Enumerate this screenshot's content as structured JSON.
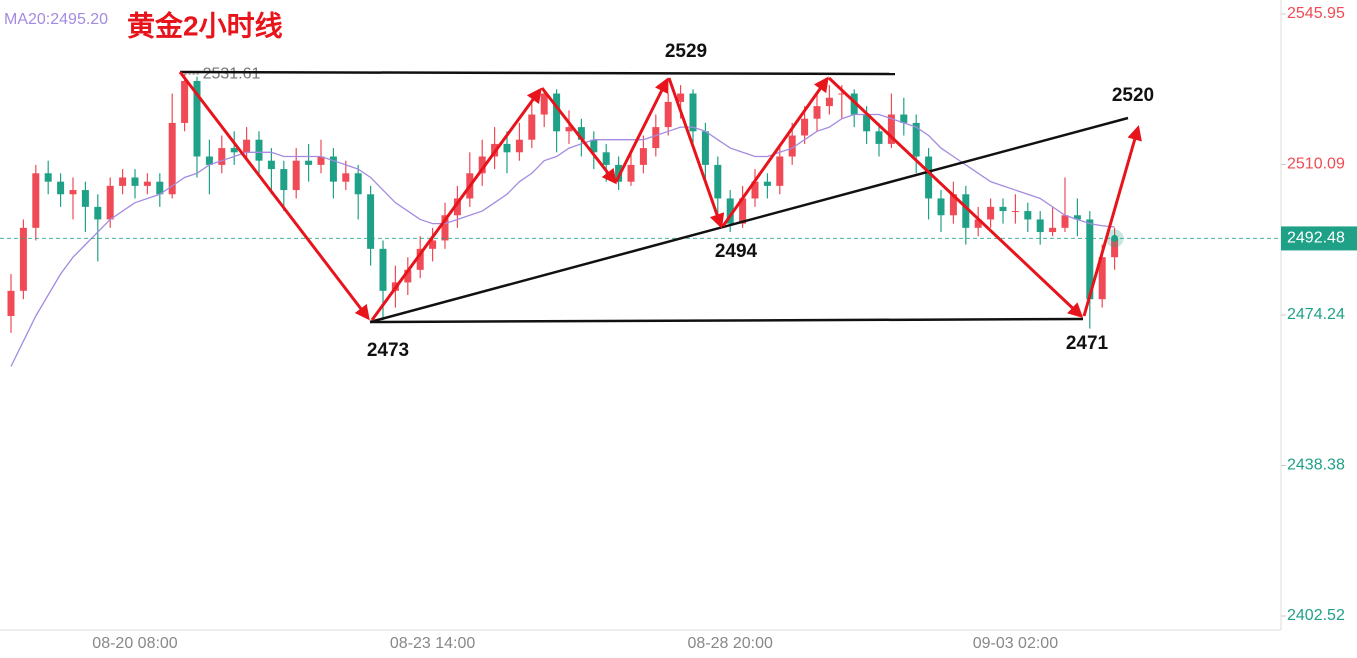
{
  "chart_data": {
    "type": "candlestick",
    "title": "黄金2小时线",
    "ma_label": "MA20:2495.20",
    "ylim": [
      2402.52,
      2545.95
    ],
    "yticks": [
      2545.95,
      2510.09,
      2474.24,
      2438.38,
      2402.52
    ],
    "last_price": 2492.48,
    "high_label": 2531.61,
    "up_color": "#ef4a55",
    "down_color": "#1fa187",
    "categories": [
      null,
      null,
      null,
      null,
      null,
      null,
      null,
      null,
      null,
      null,
      "08-20 08:00",
      null,
      null,
      null,
      null,
      null,
      null,
      null,
      null,
      null,
      null,
      null,
      null,
      null,
      null,
      null,
      null,
      null,
      null,
      null,
      null,
      null,
      null,
      null,
      "08-23 14:00",
      null,
      null,
      null,
      null,
      null,
      null,
      null,
      null,
      null,
      null,
      null,
      null,
      null,
      null,
      null,
      null,
      null,
      null,
      null,
      null,
      null,
      null,
      null,
      "08-28 20:00",
      null,
      null,
      null,
      null,
      null,
      null,
      null,
      null,
      null,
      null,
      null,
      null,
      null,
      null,
      null,
      null,
      null,
      null,
      null,
      null,
      null,
      null,
      "09-03 02:00",
      null,
      null,
      null,
      null,
      null,
      null,
      null,
      null
    ],
    "ohlc": [
      [
        2474,
        2484,
        2470,
        2480
      ],
      [
        2480,
        2497,
        2478,
        2495
      ],
      [
        2495,
        2510,
        2492,
        2508
      ],
      [
        2508,
        2511,
        2503,
        2506
      ],
      [
        2506,
        2508,
        2500,
        2503
      ],
      [
        2503,
        2507,
        2497,
        2504
      ],
      [
        2504,
        2506,
        2494,
        2500
      ],
      [
        2500,
        2503,
        2487,
        2497
      ],
      [
        2497,
        2507,
        2495,
        2505
      ],
      [
        2505,
        2509,
        2503,
        2507
      ],
      [
        2507,
        2509,
        2502,
        2505
      ],
      [
        2505,
        2508,
        2503,
        2506
      ],
      [
        2506,
        2508,
        2500,
        2503
      ],
      [
        2503,
        2527,
        2502,
        2520
      ],
      [
        2520,
        2531.61,
        2518,
        2530
      ],
      [
        2530,
        2531,
        2507,
        2512
      ],
      [
        2512,
        2516,
        2503,
        2510
      ],
      [
        2510,
        2517,
        2508,
        2514
      ],
      [
        2514,
        2518,
        2510,
        2513
      ],
      [
        2513,
        2519,
        2511,
        2516
      ],
      [
        2516,
        2518,
        2508,
        2511
      ],
      [
        2511,
        2514,
        2503,
        2509
      ],
      [
        2509,
        2511,
        2499,
        2504
      ],
      [
        2504,
        2514,
        2502,
        2511
      ],
      [
        2511,
        2515,
        2506,
        2510
      ],
      [
        2510,
        2516,
        2508,
        2512
      ],
      [
        2512,
        2514,
        2502,
        2506
      ],
      [
        2506,
        2511,
        2504,
        2508
      ],
      [
        2508,
        2510,
        2497,
        2503
      ],
      [
        2503,
        2505,
        2486,
        2490
      ],
      [
        2490,
        2492,
        2473,
        2480
      ],
      [
        2480,
        2486,
        2476,
        2482
      ],
      [
        2482,
        2488,
        2479,
        2485
      ],
      [
        2485,
        2493,
        2483,
        2490
      ],
      [
        2490,
        2495,
        2487,
        2492
      ],
      [
        2492,
        2501,
        2490,
        2498
      ],
      [
        2498,
        2505,
        2495,
        2502
      ],
      [
        2502,
        2513,
        2500,
        2508
      ],
      [
        2508,
        2516,
        2505,
        2512
      ],
      [
        2512,
        2519,
        2509,
        2515
      ],
      [
        2515,
        2518,
        2508,
        2513
      ],
      [
        2513,
        2520,
        2511,
        2516
      ],
      [
        2516,
        2525,
        2514,
        2522
      ],
      [
        2522,
        2528,
        2519,
        2527
      ],
      [
        2527,
        2528,
        2513,
        2518
      ],
      [
        2518,
        2523,
        2515,
        2519
      ],
      [
        2519,
        2521,
        2512,
        2516
      ],
      [
        2516,
        2518,
        2509,
        2513
      ],
      [
        2513,
        2515,
        2506,
        2510
      ],
      [
        2510,
        2512,
        2504,
        2506
      ],
      [
        2506,
        2513,
        2505,
        2510
      ],
      [
        2510,
        2517,
        2508,
        2514
      ],
      [
        2514,
        2522,
        2512,
        2519
      ],
      [
        2519,
        2527,
        2517,
        2525
      ],
      [
        2525,
        2529,
        2521,
        2527
      ],
      [
        2527,
        2528,
        2514,
        2518
      ],
      [
        2518,
        2520,
        2506,
        2510
      ],
      [
        2510,
        2512,
        2498,
        2502
      ],
      [
        2502,
        2504,
        2494,
        2496
      ],
      [
        2496,
        2505,
        2495,
        2502
      ],
      [
        2502,
        2509,
        2500,
        2506
      ],
      [
        2506,
        2508,
        2502,
        2505
      ],
      [
        2505,
        2515,
        2503,
        2512
      ],
      [
        2512,
        2520,
        2510,
        2517
      ],
      [
        2517,
        2524,
        2515,
        2521
      ],
      [
        2521,
        2527,
        2518,
        2524
      ],
      [
        2524,
        2529,
        2522,
        2526
      ],
      [
        2527,
        2529,
        2521,
        2527
      ],
      [
        2527,
        2528,
        2519,
        2522
      ],
      [
        2522,
        2524,
        2515,
        2518
      ],
      [
        2518,
        2520,
        2512,
        2515
      ],
      [
        2515,
        2527,
        2514,
        2522
      ],
      [
        2522,
        2526,
        2517,
        2520
      ],
      [
        2520,
        2522,
        2508,
        2512
      ],
      [
        2512,
        2514,
        2497,
        2502
      ],
      [
        2502,
        2504,
        2494,
        2498
      ],
      [
        2498,
        2506,
        2496,
        2503
      ],
      [
        2503,
        2505,
        2491,
        2495
      ],
      [
        2495,
        2500,
        2493,
        2497
      ],
      [
        2497,
        2502,
        2495,
        2500
      ],
      [
        2500,
        2502,
        2496,
        2499
      ],
      [
        2499,
        2503,
        2496,
        2499
      ],
      [
        2499,
        2501,
        2494,
        2497
      ],
      [
        2497,
        2499,
        2491,
        2494
      ],
      [
        2494,
        2500,
        2493,
        2495
      ],
      [
        2495,
        2507,
        2494,
        2498
      ],
      [
        2498,
        2502,
        2493,
        2497
      ],
      [
        2497,
        2499,
        2471,
        2478
      ],
      [
        2478,
        2491,
        2476,
        2488
      ],
      [
        2488,
        2495,
        2485,
        2492.48
      ]
    ],
    "ma20": {
      "color": "#a48be0",
      "values": [
        2462,
        2468,
        2474,
        2479,
        2484,
        2488,
        2491,
        2494,
        2497,
        2499,
        2501,
        2502,
        2503,
        2505,
        2507,
        2508,
        2510,
        2511,
        2512,
        2513,
        2513,
        2513,
        2512,
        2512,
        2512,
        2512,
        2511,
        2510,
        2509,
        2507,
        2504,
        2501,
        2499,
        2497,
        2496,
        2496,
        2497,
        2498,
        2499,
        2501,
        2503,
        2506,
        2508,
        2511,
        2512,
        2514,
        2515,
        2516,
        2516,
        2516,
        2516,
        2516,
        2517,
        2518,
        2519,
        2519,
        2518,
        2516,
        2514,
        2513,
        2512,
        2512,
        2513,
        2514,
        2516,
        2518,
        2519,
        2521,
        2522,
        2522,
        2522,
        2521,
        2520,
        2519,
        2517,
        2514,
        2512,
        2510,
        2508,
        2506,
        2505,
        2504,
        2503,
        2502,
        2500,
        2498,
        2497,
        2496,
        2495.5,
        2495.2
      ]
    },
    "annotations": [
      "2529",
      "2520",
      "2494",
      "2473",
      "2471"
    ]
  }
}
